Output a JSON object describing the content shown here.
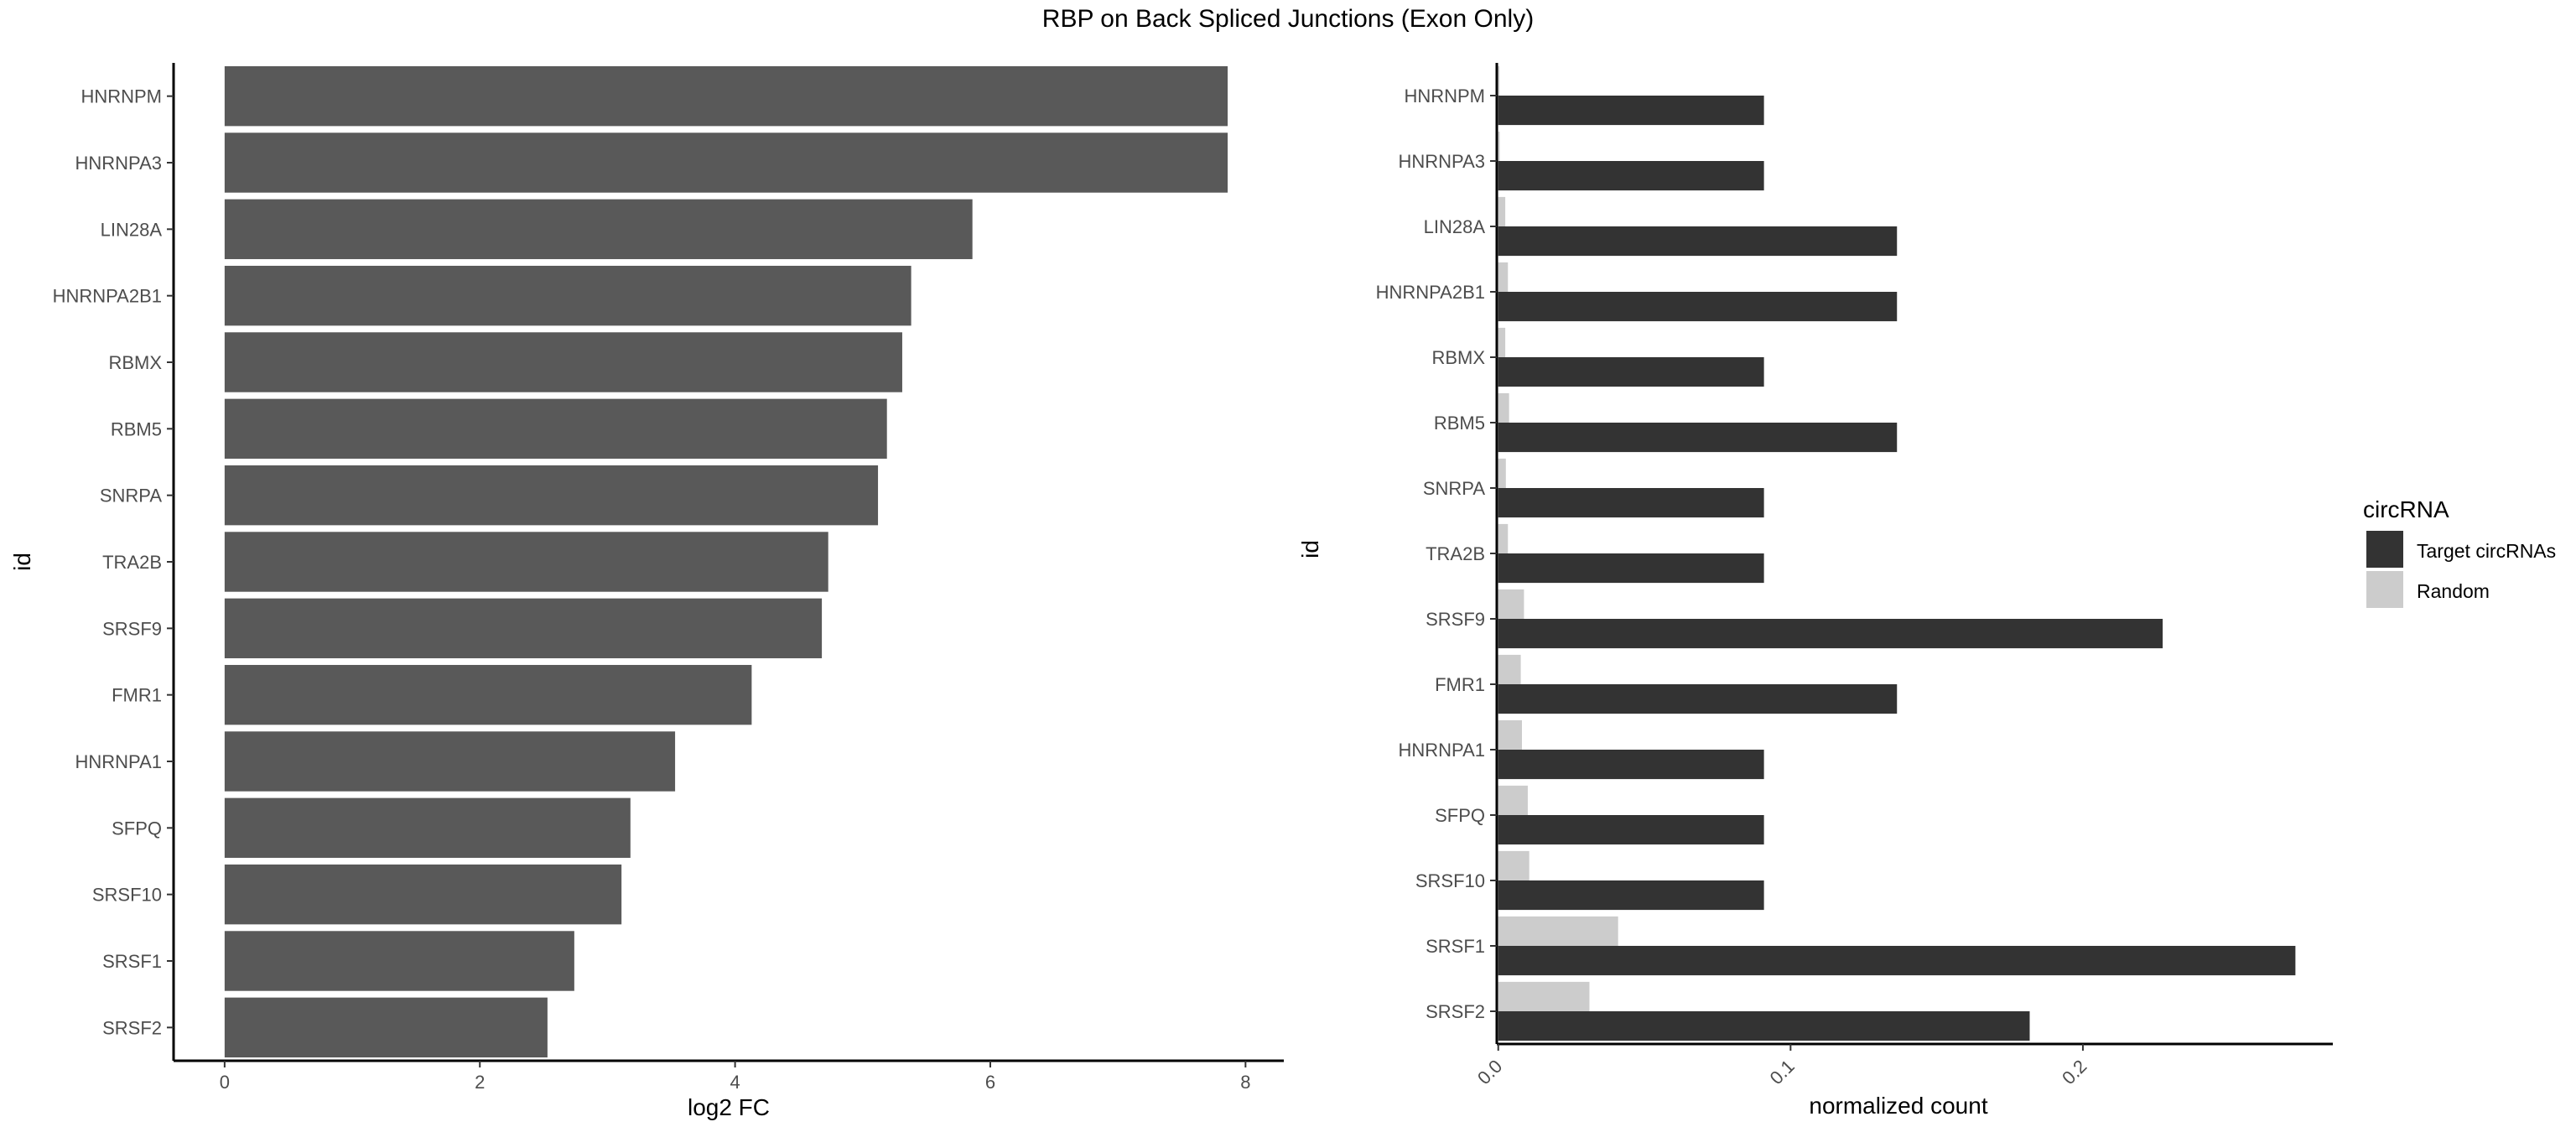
{
  "title": "RBP on Back Spliced Junctions (Exon Only)",
  "chart_data": [
    {
      "type": "bar",
      "orientation": "horizontal",
      "categories": [
        "HNRNPM",
        "HNRNPA3",
        "LIN28A",
        "HNRNPA2B1",
        "RBMX",
        "RBM5",
        "SNRPA",
        "TRA2B",
        "SRSF9",
        "FMR1",
        "HNRNPA1",
        "SFPQ",
        "SRSF10",
        "SRSF1",
        "SRSF2"
      ],
      "values": [
        7.86,
        7.86,
        5.86,
        5.38,
        5.31,
        5.19,
        5.12,
        4.73,
        4.68,
        4.13,
        3.53,
        3.18,
        3.11,
        2.74,
        2.53
      ],
      "xlabel": "log2 FC",
      "ylabel": "id",
      "xlim": [
        -0.4,
        8.3
      ],
      "xticks": [
        "0",
        "2",
        "4",
        "6",
        "8"
      ],
      "bar_color": "#595959",
      "grid": false
    },
    {
      "type": "bar",
      "orientation": "horizontal",
      "grouped": true,
      "categories": [
        "HNRNPM",
        "HNRNPA3",
        "LIN28A",
        "HNRNPA2B1",
        "RBMX",
        "RBM5",
        "SNRPA",
        "TRA2B",
        "SRSF9",
        "FMR1",
        "HNRNPA1",
        "SFPQ",
        "SRSF10",
        "SRSF1",
        "SRSF2"
      ],
      "series": [
        {
          "name": "Target circRNAs",
          "color": "#333333",
          "values": [
            0.0909,
            0.0909,
            0.1364,
            0.1364,
            0.0909,
            0.1364,
            0.0909,
            0.0909,
            0.2273,
            0.1364,
            0.0909,
            0.0909,
            0.0909,
            0.2727,
            0.1818
          ]
        },
        {
          "name": "Random",
          "color": "#cccccc",
          "values": [
            0.0004,
            0.0005,
            0.0024,
            0.0033,
            0.0024,
            0.0037,
            0.0026,
            0.0033,
            0.0088,
            0.0077,
            0.0081,
            0.0101,
            0.0106,
            0.041,
            0.0312
          ]
        }
      ],
      "xlabel": "normalized count",
      "ylabel": "id",
      "xlim": [
        -0.0005,
        0.2855
      ],
      "xticks": [
        "0.0",
        "0.1",
        "0.2"
      ],
      "legend": {
        "title": "circRNA",
        "position": "right"
      },
      "grid": false
    }
  ]
}
